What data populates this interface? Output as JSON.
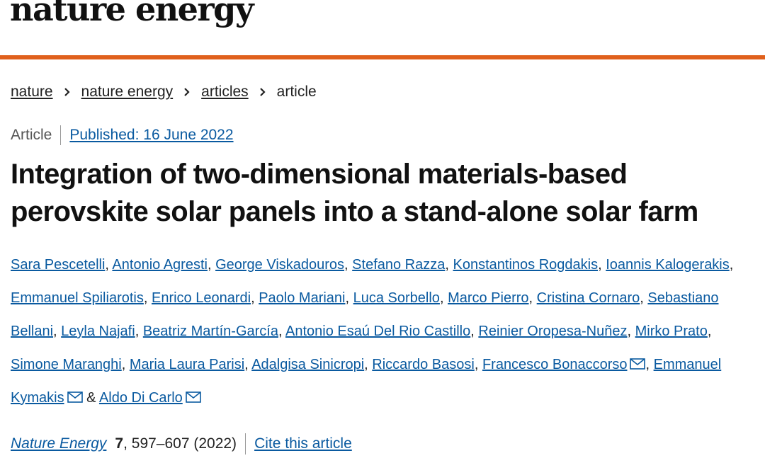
{
  "header": {
    "logo": "nature energy"
  },
  "breadcrumbs": [
    "nature",
    "nature energy",
    "articles",
    "article"
  ],
  "article": {
    "type": "Article",
    "published": "Published: 16 June 2022",
    "title": "Integration of two-dimensional materials-based perovskite solar panels into a stand-alone solar farm",
    "author_separator": ",",
    "last_author_joiner": "&",
    "authors": [
      {
        "name": "Sara Pescetelli",
        "email": false
      },
      {
        "name": "Antonio Agresti",
        "email": false
      },
      {
        "name": "George Viskadouros",
        "email": false
      },
      {
        "name": "Stefano Razza",
        "email": false
      },
      {
        "name": "Konstantinos Rogdakis",
        "email": false
      },
      {
        "name": "Ioannis Kalogerakis",
        "email": false
      },
      {
        "name": "Emmanuel Spiliarotis",
        "email": false
      },
      {
        "name": "Enrico Leonardi",
        "email": false
      },
      {
        "name": "Paolo Mariani",
        "email": false
      },
      {
        "name": "Luca Sorbello",
        "email": false
      },
      {
        "name": "Marco Pierro",
        "email": false
      },
      {
        "name": "Cristina Cornaro",
        "email": false
      },
      {
        "name": "Sebastiano Bellani",
        "email": false
      },
      {
        "name": "Leyla Najafi",
        "email": false
      },
      {
        "name": "Beatriz Martín-García",
        "email": false
      },
      {
        "name": "Antonio Esaú Del Rio Castillo",
        "email": false
      },
      {
        "name": "Reinier Oropesa-Nuñez",
        "email": false
      },
      {
        "name": "Mirko Prato",
        "email": false
      },
      {
        "name": "Simone Maranghi",
        "email": false
      },
      {
        "name": "Maria Laura Parisi",
        "email": false
      },
      {
        "name": "Adalgisa Sinicropi",
        "email": false
      },
      {
        "name": "Riccardo Basosi",
        "email": false
      },
      {
        "name": "Francesco Bonaccorso",
        "email": true
      },
      {
        "name": "Emmanuel Kymakis",
        "email": true
      },
      {
        "name": "Aldo Di Carlo",
        "email": true
      }
    ],
    "citation": {
      "journal": "Nature Energy",
      "volume": "7",
      "rest": ", 597–607 (2022)",
      "cite_link": "Cite this article"
    }
  }
}
